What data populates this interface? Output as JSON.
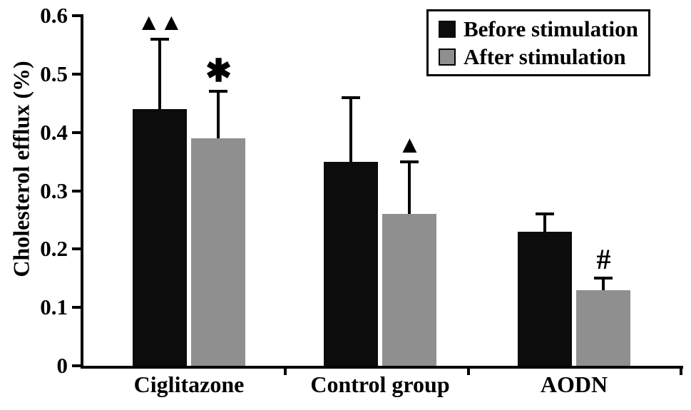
{
  "chart_data": {
    "type": "bar",
    "title": "",
    "xlabel": "",
    "ylabel": "Cholesterol efflux (%)",
    "ylim": [
      0,
      0.6
    ],
    "grid": false,
    "error_bars": true,
    "legend_position": "top-right",
    "yticks": [
      {
        "value": 0,
        "label": "0"
      },
      {
        "value": 0.1,
        "label": "0.1"
      },
      {
        "value": 0.2,
        "label": "0.2"
      },
      {
        "value": 0.3,
        "label": "0.3"
      },
      {
        "value": 0.4,
        "label": "0.4"
      },
      {
        "value": 0.5,
        "label": "0.5"
      },
      {
        "value": 0.6,
        "label": "0.6"
      }
    ],
    "categories": [
      "Ciglitazone",
      "Control group",
      "AODN"
    ],
    "series": [
      {
        "name": "Before stimulation",
        "color": "#0c0c0c",
        "values": [
          0.44,
          0.35,
          0.23
        ],
        "errors": [
          0.12,
          0.11,
          0.03
        ]
      },
      {
        "name": "After stimulation",
        "color": "#8f8f8f",
        "values": [
          0.39,
          0.26,
          0.13
        ],
        "errors": [
          0.08,
          0.09,
          0.02
        ]
      }
    ],
    "annotations": [
      {
        "name": "double-triangle-marker",
        "text": "▲▲",
        "category": 0,
        "series": 0,
        "size": 33
      },
      {
        "name": "asterisk-marker",
        "text": "✱",
        "category": 0,
        "series": 1,
        "size": 44
      },
      {
        "name": "triangle-marker",
        "text": "▲",
        "category": 1,
        "series": 1,
        "size": 34
      },
      {
        "name": "hash-marker",
        "text": "#",
        "category": 2,
        "series": 1,
        "size": 40
      }
    ]
  }
}
